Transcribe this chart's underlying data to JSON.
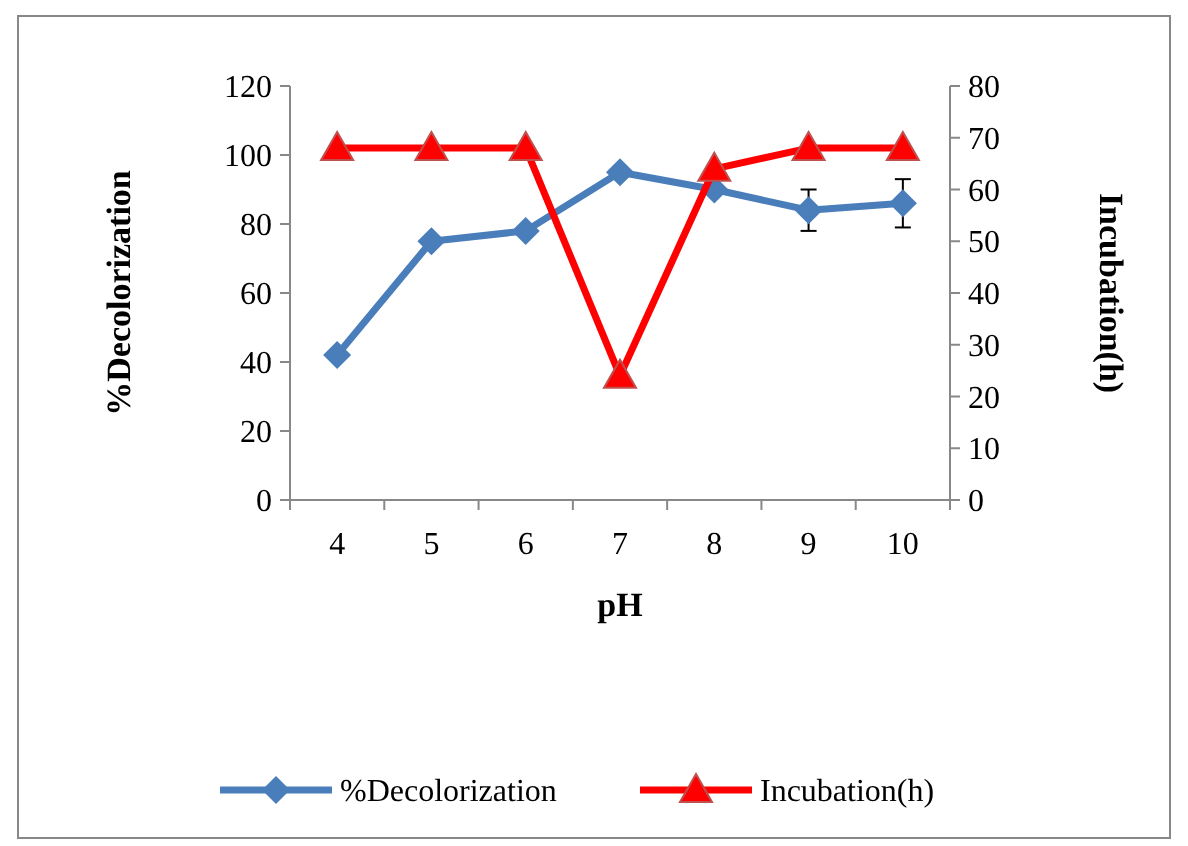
{
  "chart_data": {
    "type": "line",
    "xlabel": "pH",
    "ylabel": "%Decolorization",
    "y2label": "Incubation(h)",
    "categories": [
      "4",
      "5",
      "6",
      "7",
      "8",
      "9",
      "10"
    ],
    "series": [
      {
        "name": "%Decolorization",
        "color": "#4a7ebb",
        "values": [
          42,
          75,
          78,
          95,
          90,
          84,
          86
        ],
        "errors": [
          null,
          null,
          null,
          null,
          null,
          6,
          7
        ],
        "marker": "diamond"
      },
      {
        "name": "Incubation(h)",
        "color": "#ff0000",
        "values": [
          68,
          68,
          68,
          24,
          64,
          68,
          68
        ],
        "axis": "y2",
        "marker": "triangle"
      }
    ],
    "ylim": [
      0,
      120
    ],
    "yticks": [
      0,
      20,
      40,
      60,
      80,
      100,
      120
    ],
    "y2lim": [
      0,
      80
    ],
    "y2ticks": [
      0,
      10,
      20,
      30,
      40,
      50,
      60,
      70,
      80
    ],
    "legend": "bottom",
    "grid": false,
    "line_style": "solid"
  }
}
